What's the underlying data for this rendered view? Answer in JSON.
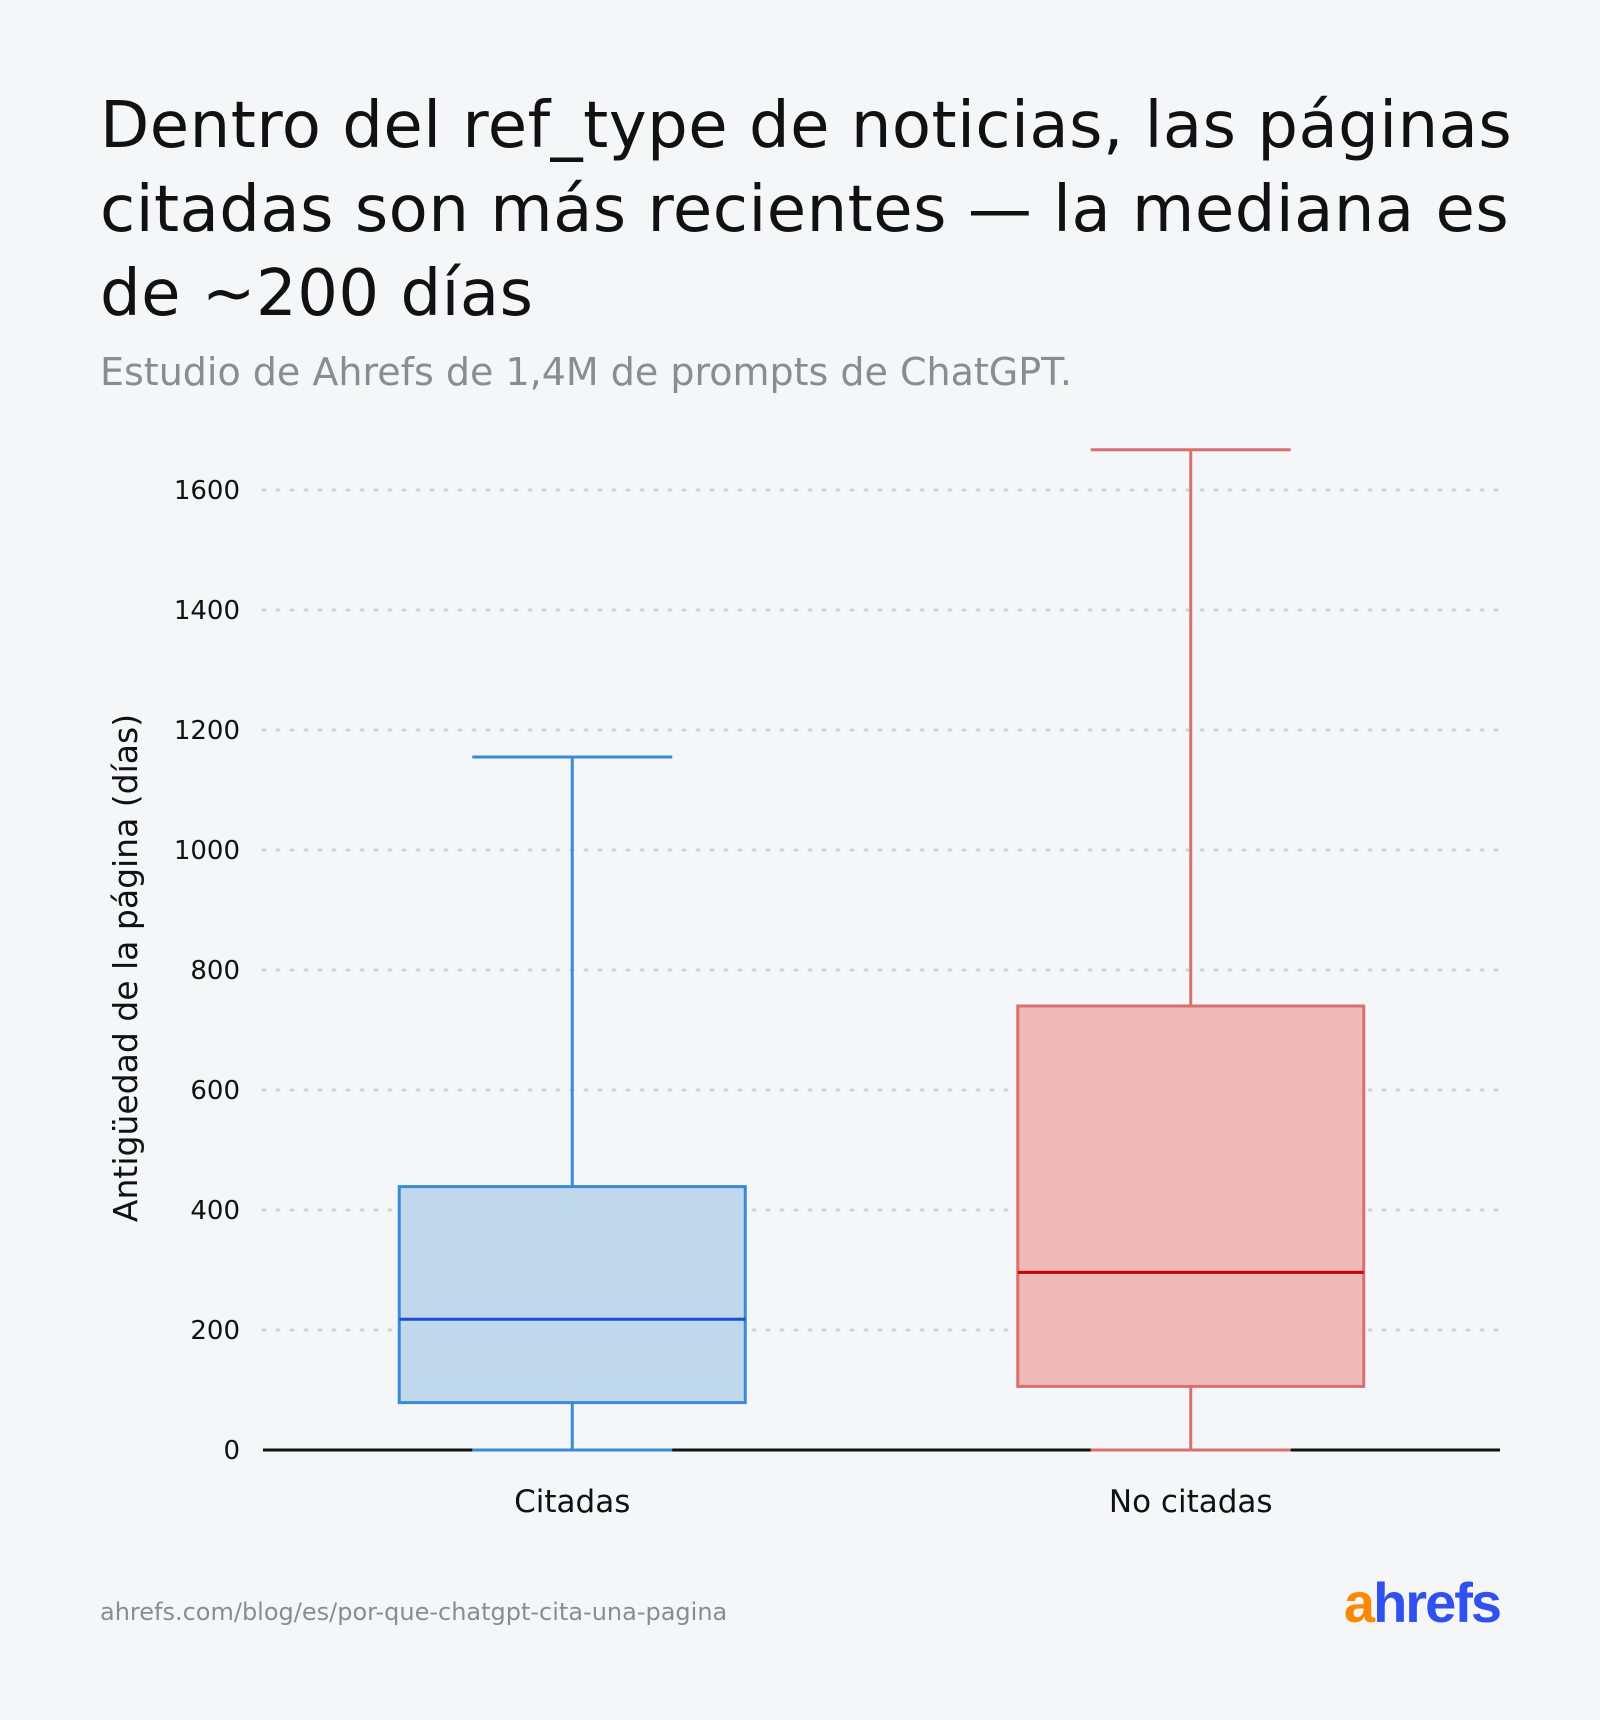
{
  "header": {
    "title": "Dentro del ref_type de noticias, las páginas citadas son más recientes — la mediana es de ~200 días",
    "subtitle": "Estudio de Ahrefs de 1,4M de prompts de ChatGPT."
  },
  "chart_data": {
    "type": "boxplot",
    "ylabel": "Antigüedad de la página (días)",
    "ylim": [
      0,
      1700
    ],
    "yticks": [
      0,
      200,
      400,
      600,
      800,
      1000,
      1200,
      1400,
      1600
    ],
    "grid": "horizontal dotted",
    "categories": [
      "Citadas",
      "No citadas"
    ],
    "series": [
      {
        "category": "Citadas",
        "min": 0,
        "q1": 79,
        "median": 218,
        "q3": 439,
        "max": 1155,
        "fill": "#c0d7ec",
        "stroke": "#3a8ad8",
        "median_color": "#1a4fcf"
      },
      {
        "category": "No citadas",
        "min": 0,
        "q1": 106,
        "median": 296,
        "q3": 740,
        "max": 1667,
        "fill": "#f0b9b9",
        "stroke": "#d97070",
        "median_color": "#cc0000"
      }
    ]
  },
  "footer": {
    "source_url": "ahrefs.com/blog/es/por-que-chatgpt-cita-una-pagina",
    "logo_text_a": "a",
    "logo_text_rest": "hrefs"
  }
}
